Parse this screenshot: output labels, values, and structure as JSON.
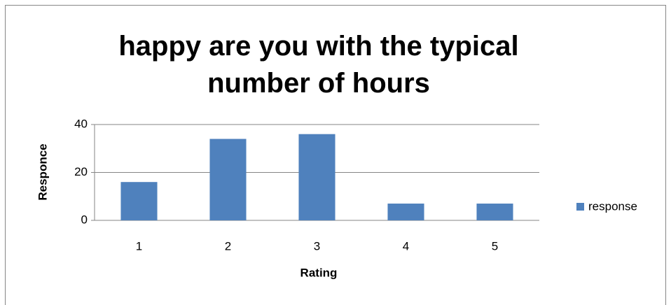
{
  "chart_data": {
    "type": "bar",
    "title": "happy are you with the typical number of hours",
    "x_label": "Rating",
    "y_label": "Responce",
    "categories": [
      "1",
      "2",
      "3",
      "4",
      "5"
    ],
    "series": [
      {
        "name": "response",
        "color": "#4f81bd",
        "values": [
          16,
          34,
          36,
          7,
          7
        ]
      }
    ],
    "ylim": [
      0,
      40
    ],
    "yticks": [
      0,
      20,
      40
    ],
    "grid": true,
    "legend": "right"
  }
}
